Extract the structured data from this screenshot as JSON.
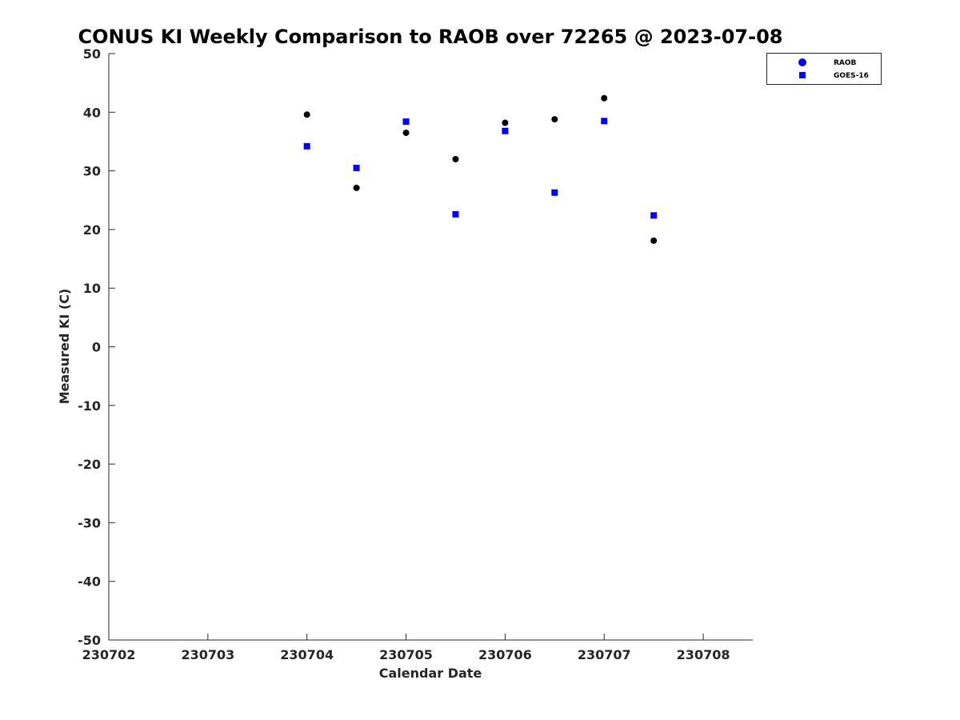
{
  "chart_data": {
    "type": "scatter",
    "title": "CONUS KI Weekly Comparison to RAOB over 72265 @ 2023-07-08",
    "xlabel": "Calendar Date",
    "ylabel": "Measured KI (C)",
    "x_tick_labels": [
      "230702",
      "230703",
      "230704",
      "230705",
      "230706",
      "230707",
      "230708"
    ],
    "y_ticks": [
      50,
      40,
      30,
      20,
      10,
      0,
      -10,
      -20,
      -30,
      -40,
      -50
    ],
    "xlim": [
      "2023-07-02",
      "2023-07-08 12:00"
    ],
    "ylim": [
      -50,
      50
    ],
    "grid": false,
    "legend_position": "top-right",
    "series": [
      {
        "name": "RAOB",
        "marker": "circle",
        "color": "#000000",
        "legend_color": "#0000ff",
        "points": [
          {
            "x": "2023-07-04 00:00",
            "y": 39.6
          },
          {
            "x": "2023-07-04 12:00",
            "y": 27.1
          },
          {
            "x": "2023-07-05 00:00",
            "y": 36.5
          },
          {
            "x": "2023-07-05 12:00",
            "y": 32.0
          },
          {
            "x": "2023-07-06 00:00",
            "y": 38.2
          },
          {
            "x": "2023-07-06 12:00",
            "y": 38.8
          },
          {
            "x": "2023-07-07 00:00",
            "y": 42.4
          },
          {
            "x": "2023-07-07 12:00",
            "y": 18.1
          }
        ]
      },
      {
        "name": "GOES-16",
        "marker": "square",
        "color": "#0000ff",
        "legend_color": "#0000ff",
        "points": [
          {
            "x": "2023-07-04 00:00",
            "y": 34.2
          },
          {
            "x": "2023-07-04 12:00",
            "y": 30.5
          },
          {
            "x": "2023-07-05 00:00",
            "y": 38.4
          },
          {
            "x": "2023-07-05 12:00",
            "y": 22.6
          },
          {
            "x": "2023-07-06 00:00",
            "y": 36.8
          },
          {
            "x": "2023-07-06 12:00",
            "y": 26.3
          },
          {
            "x": "2023-07-07 00:00",
            "y": 38.5
          },
          {
            "x": "2023-07-07 12:00",
            "y": 22.4
          }
        ]
      }
    ]
  }
}
